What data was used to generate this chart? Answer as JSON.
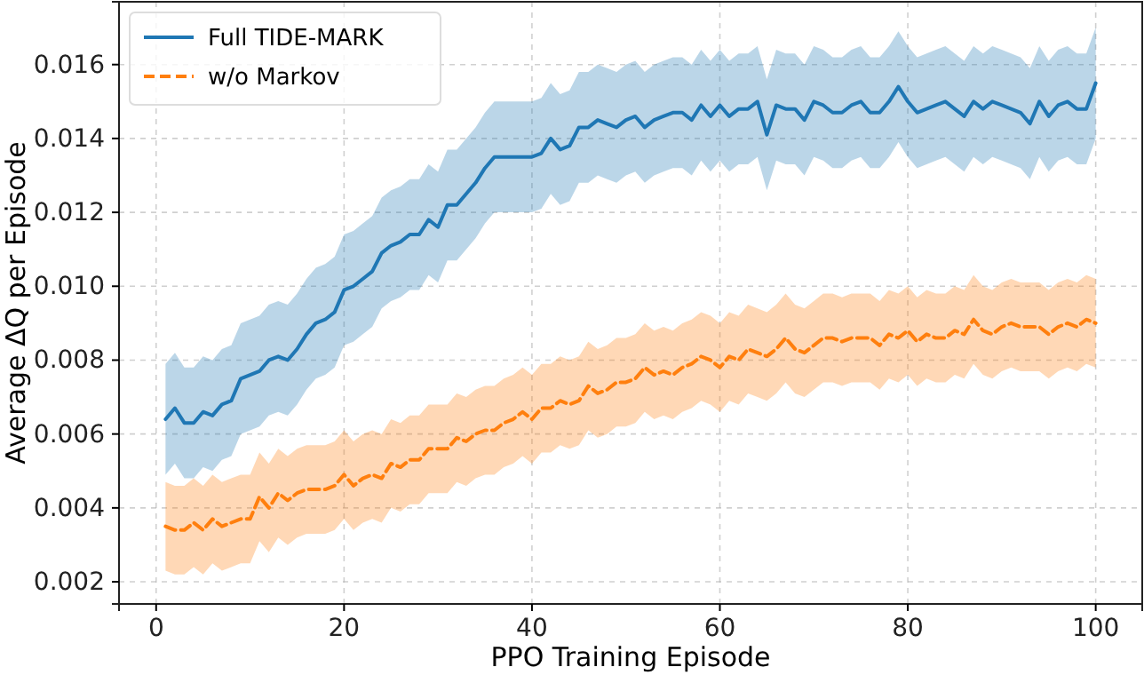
{
  "chart_data": {
    "type": "line",
    "xlabel": "PPO Training Episode",
    "ylabel": "Average ΔQ per Episode",
    "xlim": [
      -3.95,
      104.95
    ],
    "xticks": [
      0,
      20,
      40,
      60,
      80,
      100
    ],
    "ylim": [
      0.0014,
      0.0177
    ],
    "yticks": [
      0.002,
      0.004,
      0.006,
      0.008,
      {
        "value": 0.01,
        "label": "0.010"
      },
      0.012,
      0.014,
      0.016
    ],
    "grid": true,
    "legend": "top left",
    "marker": "none",
    "x": [
      1,
      2,
      3,
      4,
      5,
      6,
      7,
      8,
      9,
      10,
      11,
      12,
      13,
      14,
      15,
      16,
      17,
      18,
      19,
      20,
      21,
      22,
      23,
      24,
      25,
      26,
      27,
      28,
      29,
      30,
      31,
      32,
      33,
      34,
      35,
      36,
      37,
      38,
      39,
      40,
      41,
      42,
      43,
      44,
      45,
      46,
      47,
      48,
      49,
      50,
      51,
      52,
      53,
      54,
      55,
      56,
      57,
      58,
      59,
      60,
      61,
      62,
      63,
      64,
      65,
      66,
      67,
      68,
      69,
      70,
      71,
      72,
      73,
      74,
      75,
      76,
      77,
      78,
      79,
      80,
      81,
      82,
      83,
      84,
      85,
      86,
      87,
      88,
      89,
      90,
      91,
      92,
      93,
      94,
      95,
      96,
      97,
      98,
      99,
      100
    ],
    "series": [
      {
        "name": "Full TIDE-MARK",
        "color": "#1f77b4",
        "line_style": "solid",
        "values": [
          0.0064,
          0.0067,
          0.0063,
          0.0063,
          0.0066,
          0.0065,
          0.0068,
          0.0069,
          0.0075,
          0.0076,
          0.0077,
          0.008,
          0.0081,
          0.008,
          0.0083,
          0.0087,
          0.009,
          0.0091,
          0.0093,
          0.0099,
          0.01,
          0.0102,
          0.0104,
          0.0109,
          0.0111,
          0.0112,
          0.0114,
          0.0114,
          0.0118,
          0.0116,
          0.0122,
          0.0122,
          0.0125,
          0.0128,
          0.0132,
          0.0135,
          0.0135,
          0.0135,
          0.0135,
          0.0135,
          0.0136,
          0.014,
          0.0137,
          0.0138,
          0.0143,
          0.0143,
          0.0145,
          0.0144,
          0.0143,
          0.0145,
          0.0146,
          0.0143,
          0.0145,
          0.0146,
          0.0147,
          0.0147,
          0.0145,
          0.0149,
          0.0146,
          0.0149,
          0.0146,
          0.0148,
          0.0148,
          0.015,
          0.0141,
          0.0149,
          0.0148,
          0.0148,
          0.0145,
          0.015,
          0.0149,
          0.0147,
          0.0147,
          0.0149,
          0.015,
          0.0147,
          0.0147,
          0.015,
          0.0154,
          0.015,
          0.0147,
          0.0148,
          0.0149,
          0.015,
          0.0148,
          0.0146,
          0.015,
          0.0148,
          0.015,
          0.0149,
          0.0148,
          0.0147,
          0.0144,
          0.015,
          0.0146,
          0.0149,
          0.015,
          0.0148,
          0.0148,
          0.0155
        ],
        "upper": [
          0.0079,
          0.0082,
          0.0078,
          0.0078,
          0.0081,
          0.008,
          0.0083,
          0.0084,
          0.009,
          0.0091,
          0.0092,
          0.0095,
          0.0096,
          0.0095,
          0.0098,
          0.0102,
          0.0105,
          0.0106,
          0.0108,
          0.0114,
          0.0115,
          0.0117,
          0.0119,
          0.0124,
          0.0126,
          0.0127,
          0.0129,
          0.0129,
          0.0133,
          0.0131,
          0.0137,
          0.0137,
          0.014,
          0.0143,
          0.0147,
          0.015,
          0.015,
          0.015,
          0.015,
          0.015,
          0.0151,
          0.0155,
          0.0152,
          0.0153,
          0.0158,
          0.0158,
          0.016,
          0.0159,
          0.0158,
          0.016,
          0.0161,
          0.0158,
          0.016,
          0.0161,
          0.0162,
          0.0162,
          0.016,
          0.0164,
          0.0161,
          0.0164,
          0.0161,
          0.0163,
          0.0163,
          0.0165,
          0.0156,
          0.0164,
          0.0163,
          0.0163,
          0.016,
          0.0165,
          0.0164,
          0.0162,
          0.0162,
          0.0164,
          0.0165,
          0.0162,
          0.0162,
          0.0165,
          0.0169,
          0.0165,
          0.0162,
          0.0163,
          0.0164,
          0.0165,
          0.0163,
          0.0161,
          0.0165,
          0.0163,
          0.0165,
          0.0164,
          0.0163,
          0.0162,
          0.0159,
          0.0165,
          0.0161,
          0.0164,
          0.0165,
          0.0163,
          0.0163,
          0.017
        ],
        "lower": [
          0.0049,
          0.0052,
          0.0048,
          0.0048,
          0.0051,
          0.005,
          0.0053,
          0.0054,
          0.006,
          0.0061,
          0.0062,
          0.0065,
          0.0066,
          0.0065,
          0.0068,
          0.0072,
          0.0075,
          0.0076,
          0.0078,
          0.0084,
          0.0085,
          0.0087,
          0.0089,
          0.0094,
          0.0096,
          0.0097,
          0.0099,
          0.0099,
          0.0103,
          0.0101,
          0.0107,
          0.0107,
          0.011,
          0.0113,
          0.0117,
          0.012,
          0.012,
          0.012,
          0.012,
          0.012,
          0.0121,
          0.0125,
          0.0122,
          0.0123,
          0.0128,
          0.0128,
          0.013,
          0.0129,
          0.0128,
          0.013,
          0.0131,
          0.0128,
          0.013,
          0.0131,
          0.0132,
          0.0132,
          0.013,
          0.0134,
          0.0131,
          0.0134,
          0.0131,
          0.0133,
          0.0133,
          0.0135,
          0.0126,
          0.0134,
          0.0133,
          0.0133,
          0.013,
          0.0135,
          0.0134,
          0.0132,
          0.0132,
          0.0134,
          0.0135,
          0.0132,
          0.0132,
          0.0135,
          0.0139,
          0.0135,
          0.0132,
          0.0133,
          0.0134,
          0.0135,
          0.0133,
          0.0131,
          0.0135,
          0.0133,
          0.0135,
          0.0134,
          0.0133,
          0.0132,
          0.0129,
          0.0135,
          0.0131,
          0.0134,
          0.0135,
          0.0133,
          0.0133,
          0.014
        ]
      },
      {
        "name": "w/o Markov",
        "color": "#ff7f0e",
        "line_style": "dashed",
        "values": [
          0.0035,
          0.0034,
          0.0034,
          0.0036,
          0.0034,
          0.0037,
          0.0035,
          0.0036,
          0.0037,
          0.0037,
          0.0043,
          0.004,
          0.0044,
          0.0042,
          0.0044,
          0.0045,
          0.0045,
          0.0045,
          0.0046,
          0.0049,
          0.0046,
          0.0048,
          0.0049,
          0.0048,
          0.0052,
          0.0051,
          0.0053,
          0.0053,
          0.0056,
          0.0056,
          0.0056,
          0.0059,
          0.0058,
          0.006,
          0.0061,
          0.0061,
          0.0063,
          0.0064,
          0.0066,
          0.0064,
          0.0067,
          0.0067,
          0.0069,
          0.0068,
          0.0069,
          0.0073,
          0.0071,
          0.0072,
          0.0074,
          0.0074,
          0.0075,
          0.0078,
          0.0076,
          0.0077,
          0.0076,
          0.0078,
          0.0079,
          0.0081,
          0.008,
          0.0078,
          0.0081,
          0.008,
          0.0083,
          0.0082,
          0.0081,
          0.0083,
          0.0086,
          0.0083,
          0.0082,
          0.0084,
          0.0086,
          0.0086,
          0.0085,
          0.0086,
          0.0086,
          0.0086,
          0.0084,
          0.0087,
          0.0086,
          0.0088,
          0.0085,
          0.0087,
          0.0086,
          0.0086,
          0.0088,
          0.0087,
          0.0091,
          0.0088,
          0.0087,
          0.0089,
          0.009,
          0.0089,
          0.0089,
          0.0089,
          0.0087,
          0.0089,
          0.009,
          0.0089,
          0.0091,
          0.009
        ],
        "upper": [
          0.0047,
          0.0046,
          0.0046,
          0.0048,
          0.0046,
          0.0049,
          0.0047,
          0.0048,
          0.0049,
          0.0049,
          0.0055,
          0.0052,
          0.0056,
          0.0054,
          0.0056,
          0.0057,
          0.0057,
          0.0057,
          0.0058,
          0.0061,
          0.0058,
          0.006,
          0.0061,
          0.006,
          0.0064,
          0.0063,
          0.0065,
          0.0065,
          0.0068,
          0.0068,
          0.0068,
          0.0071,
          0.007,
          0.0072,
          0.0073,
          0.0073,
          0.0075,
          0.0076,
          0.0078,
          0.0076,
          0.0079,
          0.0079,
          0.0081,
          0.008,
          0.0081,
          0.0085,
          0.0083,
          0.0084,
          0.0086,
          0.0086,
          0.0087,
          0.009,
          0.0088,
          0.0089,
          0.0088,
          0.009,
          0.0091,
          0.0093,
          0.0092,
          0.009,
          0.0093,
          0.0092,
          0.0095,
          0.0094,
          0.0093,
          0.0095,
          0.0098,
          0.0095,
          0.0094,
          0.0096,
          0.0098,
          0.0098,
          0.0097,
          0.0098,
          0.0098,
          0.0098,
          0.0096,
          0.0099,
          0.0098,
          0.01,
          0.0097,
          0.0099,
          0.0098,
          0.0098,
          0.01,
          0.0099,
          0.0103,
          0.01,
          0.0099,
          0.0101,
          0.0102,
          0.0101,
          0.0101,
          0.0101,
          0.0099,
          0.0101,
          0.0102,
          0.0101,
          0.0103,
          0.0102
        ],
        "lower": [
          0.0023,
          0.0022,
          0.0022,
          0.0024,
          0.0022,
          0.0025,
          0.0023,
          0.0024,
          0.0025,
          0.0025,
          0.0031,
          0.0028,
          0.0032,
          0.003,
          0.0032,
          0.0033,
          0.0033,
          0.0033,
          0.0034,
          0.0037,
          0.0034,
          0.0036,
          0.0037,
          0.0036,
          0.004,
          0.0039,
          0.0041,
          0.0041,
          0.0044,
          0.0044,
          0.0044,
          0.0047,
          0.0046,
          0.0048,
          0.0049,
          0.0049,
          0.0051,
          0.0052,
          0.0054,
          0.0052,
          0.0055,
          0.0055,
          0.0057,
          0.0056,
          0.0057,
          0.0061,
          0.0059,
          0.006,
          0.0062,
          0.0062,
          0.0063,
          0.0066,
          0.0064,
          0.0065,
          0.0064,
          0.0066,
          0.0067,
          0.0069,
          0.0068,
          0.0066,
          0.0069,
          0.0068,
          0.0071,
          0.007,
          0.0069,
          0.0071,
          0.0074,
          0.0071,
          0.007,
          0.0072,
          0.0074,
          0.0074,
          0.0073,
          0.0074,
          0.0074,
          0.0074,
          0.0072,
          0.0075,
          0.0074,
          0.0076,
          0.0073,
          0.0075,
          0.0074,
          0.0074,
          0.0076,
          0.0075,
          0.0079,
          0.0076,
          0.0075,
          0.0077,
          0.0078,
          0.0077,
          0.0077,
          0.0077,
          0.0075,
          0.0077,
          0.0078,
          0.0077,
          0.0079,
          0.0078
        ]
      }
    ]
  }
}
